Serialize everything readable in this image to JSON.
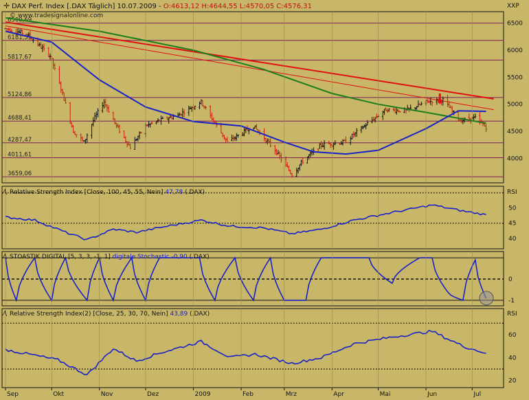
{
  "watermark": "© www.tradesignalonline.com",
  "header": {
    "title": "DAX Perf. Index [.DAX  Täglich]  10.07.2009 - ",
    "ohlc": "O:4613,12 H:4644,55 L:4570,05 C:4576,31"
  },
  "colors": {
    "panel_bg": "#c8b768",
    "frame": "#111111",
    "price_up": "#111111",
    "price_down": "#cc1f10",
    "ma_blue": "#1820c8",
    "ma_green": "#1a7d1a",
    "trend_red": "#e01010",
    "support_line": "#7a1f5a",
    "indicator_line": "#1820c8",
    "header_value": "#c01010"
  },
  "x_axis": {
    "labels": [
      "Sep",
      "Okt",
      "Nov",
      "Dez",
      "2009",
      "Feb",
      "Mrz",
      "Apr",
      "Mai",
      "Jun",
      "Jul"
    ]
  },
  "panels": {
    "price": {
      "axis_label": "XXP",
      "ticks": [
        "6500",
        "6000",
        "5500",
        "5000",
        "4500",
        "4000"
      ],
      "levels": [
        "6500,69",
        "6181,55",
        "5817,67",
        "5124,86",
        "4688,41",
        "4287,47",
        "4011,61",
        "3659,06"
      ]
    },
    "rsi1": {
      "title": "Relative Strength Index [Close, 100, 45, 55, Nein]",
      "value": "47,78",
      "symbol": "(.DAX)",
      "axis_label": "RSI",
      "ticks": [
        "50",
        "45",
        "40"
      ]
    },
    "stoch": {
      "title": "STOASTIK DIGITAL [5, 3, 3, -1, 1]",
      "subtitle": "digitale Stochastic",
      "value": "-0,90",
      "symbol": "(.DAX)",
      "ticks": [
        "0",
        "-1"
      ]
    },
    "rsi2": {
      "title": "Relative Strength Index(2) [Close, 25, 30, 70, Nein]",
      "value": "43,89",
      "symbol": "(.DAX)",
      "axis_label": "RSI",
      "ticks": [
        "60",
        "40",
        "20"
      ]
    }
  },
  "chart_data": [
    {
      "type": "candlestick",
      "title": "DAX Perf. Index [.DAX Täglich] 10.07.2009",
      "last_bar": {
        "open": 4613.12,
        "high": 4644.55,
        "low": 4570.05,
        "close": 4576.31
      },
      "ylim": [
        3560,
        6700
      ],
      "y_ticks": [
        6500,
        6000,
        5500,
        5000,
        4500,
        4000
      ],
      "horizontal_levels": [
        6500.69,
        6181.55,
        5817.67,
        5124.86,
        4688.41,
        4287.47,
        4011.61,
        3659.06
      ],
      "price_path": {
        "x": [
          "2008-09-01",
          "2008-09-15",
          "2008-09-30",
          "2008-10-08",
          "2008-10-15",
          "2008-10-22",
          "2008-10-28",
          "2008-11-04",
          "2008-11-12",
          "2008-11-21",
          "2008-12-01",
          "2008-12-10",
          "2008-12-22",
          "2009-01-06",
          "2009-01-15",
          "2009-01-23",
          "2009-02-09",
          "2009-02-23",
          "2009-03-06",
          "2009-03-13",
          "2009-03-25",
          "2009-04-09",
          "2009-04-22",
          "2009-05-06",
          "2009-05-19",
          "2009-06-02",
          "2009-06-12",
          "2009-06-23",
          "2009-07-03",
          "2009-07-10"
        ],
        "y": [
          6400,
          6300,
          5900,
          5200,
          4500,
          4300,
          4700,
          5050,
          4600,
          4200,
          4600,
          4700,
          4800,
          5050,
          4650,
          4300,
          4600,
          4150,
          3700,
          3950,
          4250,
          4300,
          4600,
          4900,
          4880,
          5050,
          5080,
          4700,
          4750,
          4576
        ]
      },
      "moving_average_blue": {
        "x": [
          "2008-09-01",
          "2008-10-01",
          "2008-11-01",
          "2008-12-01",
          "2009-01-01",
          "2009-02-01",
          "2009-03-01",
          "2009-03-20",
          "2009-04-10",
          "2009-05-01",
          "2009-06-01",
          "2009-06-22",
          "2009-07-10"
        ],
        "y": [
          6350,
          6150,
          5450,
          4950,
          4680,
          4600,
          4300,
          4120,
          4080,
          4150,
          4550,
          4880,
          4870
        ]
      },
      "moving_average_green": {
        "x": [
          "2008-09-01",
          "2008-11-01",
          "2009-01-01",
          "2009-02-15",
          "2009-04-01",
          "2009-05-01",
          "2009-06-01",
          "2009-07-10"
        ],
        "y": [
          6600,
          6350,
          6000,
          5650,
          5200,
          5000,
          4850,
          4650
        ]
      },
      "trend_lines": [
        {
          "from": [
            "2008-09-01",
            6520
          ],
          "to": [
            "2009-07-15",
            5100
          ]
        },
        {
          "from": [
            "2008-09-01",
            6450
          ],
          "to": [
            "2009-07-15",
            4900
          ]
        }
      ],
      "marker": {
        "date": "2009-06-10",
        "direction": "down"
      }
    },
    {
      "type": "line",
      "title": "Relative Strength Index [Close, 100, 45, 55, Nein]",
      "last_value": 47.78,
      "ylim": [
        37,
        54
      ],
      "reference_lines": [
        55,
        45
      ],
      "x": [
        "2008-09-01",
        "2008-09-20",
        "2008-10-10",
        "2008-10-24",
        "2008-11-10",
        "2008-11-25",
        "2008-12-15",
        "2009-01-06",
        "2009-01-25",
        "2009-02-15",
        "2009-03-06",
        "2009-03-25",
        "2009-04-15",
        "2009-05-10",
        "2009-06-05",
        "2009-06-25",
        "2009-07-10"
      ],
      "y": [
        47,
        46,
        42,
        39.5,
        43,
        42,
        44,
        46,
        44,
        43.5,
        41.5,
        43,
        46,
        48.5,
        51,
        49,
        47.78
      ]
    },
    {
      "type": "line",
      "title": "STOASTIK DIGITAL [5, 3, 3, -1, 1] digitale Stochastic",
      "last_value": -0.9,
      "ylim": [
        -1.1,
        1.1
      ],
      "reference_lines": [
        1,
        0,
        -1
      ],
      "x": [
        "2008-09-01",
        "2008-09-08",
        "2008-09-20",
        "2008-10-01",
        "2008-10-10",
        "2008-10-24",
        "2008-11-01",
        "2008-11-10",
        "2008-11-22",
        "2008-12-01",
        "2008-12-10",
        "2008-12-20",
        "2009-01-05",
        "2009-01-15",
        "2009-01-28",
        "2009-02-09",
        "2009-02-20",
        "2009-03-01",
        "2009-03-15",
        "2009-03-25",
        "2009-04-10",
        "2009-04-25",
        "2009-05-10",
        "2009-05-28",
        "2009-06-05",
        "2009-06-15",
        "2009-06-25",
        "2009-07-03",
        "2009-07-10"
      ],
      "y": [
        1,
        -1,
        1,
        -1,
        1,
        -1,
        1,
        -1,
        1,
        -1,
        1,
        1,
        1,
        -1,
        1,
        -1,
        1,
        -1,
        -1,
        1,
        1,
        1,
        -0.2,
        1,
        1,
        -0.6,
        -1,
        0.9,
        -0.9
      ]
    },
    {
      "type": "line",
      "title": "Relative Strength Index(2) [Close, 25, 30, 70, Nein]",
      "last_value": 43.89,
      "ylim": [
        15,
        75
      ],
      "reference_lines": [
        70,
        30
      ],
      "x": [
        "2008-09-01",
        "2008-09-20",
        "2008-10-05",
        "2008-10-24",
        "2008-11-10",
        "2008-11-25",
        "2008-12-10",
        "2009-01-06",
        "2009-01-25",
        "2009-02-10",
        "2009-03-06",
        "2009-03-25",
        "2009-04-15",
        "2009-05-10",
        "2009-06-05",
        "2009-06-25",
        "2009-07-10"
      ],
      "y": [
        47,
        42,
        38,
        25,
        48,
        37,
        44,
        54,
        40,
        43,
        35,
        40,
        52,
        58,
        63,
        50,
        43.89
      ]
    }
  ]
}
